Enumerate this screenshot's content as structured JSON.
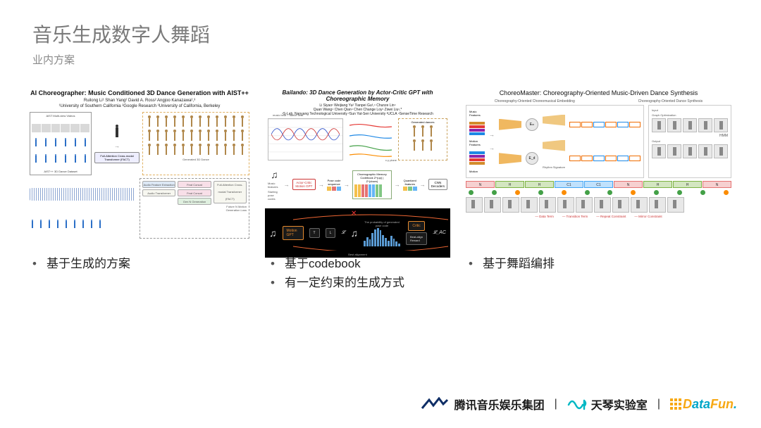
{
  "header": {
    "title": "音乐生成数字人舞蹈",
    "subtitle": "业内方案"
  },
  "columns": [
    {
      "paper_title": "AI Choreographer: Music Conditioned 3D Dance Generation with AIST++",
      "authors_line1": "Ruilong Li¹    Shan Yang²    David A. Ross²    Angjoo Kanazawa²,³",
      "authors_line2": "¹University of Southern California   ²Google Research   ³University of California, Berkeley",
      "labels": {
        "top_left_top": "AIST Multi-view Videos",
        "top_left_bot": "AIST++ 3D Dance Dataset",
        "mid_box": "Full-Attention Cross-modal Transformer (FACT)",
        "right_label": "Generated 3D Dance",
        "bot_right_out": "Future N Motion Generation Loss",
        "mod1": "Audio Transformer",
        "mod1b": "Audio Feature Extraction",
        "mod2a": "Feat Concat",
        "mod2b": "Feat Concat",
        "mod2c": "Gen N Generation",
        "mod3": "Full-Attention Cross-modal Transformer (FACT)"
      },
      "bullets": [
        "基于生成的方案"
      ]
    },
    {
      "paper_title": "Bailando: 3D Dance Generation by Actor-Critic GPT with Choreographic Memory",
      "authors_line1": "Li Siyao¹   Weijiang Yu²   Tianpei Gu³,⁴   Chunze Lin⁴",
      "authors_line2": "Quan Wang⁴   Chen Qian⁴   Chen Change Loy¹   Ziwei Liu¹,*",
      "authors_line3": "¹S-Lab, Nanyang Technological University   ²Sun Yat-Sen University   ³UCLA   ⁴SenseTime Research",
      "labels": {
        "wave_top": "music beat  ↓ dance beat",
        "flow1": "Music features",
        "flow2": "Starting pose codes",
        "gpt": "Actor-Critic Motion GPT",
        "pose_code": "Pose code sequence",
        "codebook_title": "Choreographic Memory Codebook  Z^(up) | Z^(down)",
        "quant": "Quantized features",
        "cnn": "CNN Decoders",
        "gen": "Generated dances",
        "xy": "x-y plane",
        "bb_motion": "Motion GPT",
        "bb_T": "T",
        "bb_L": "L",
        "bb_critic": "Critic",
        "beat_align": "Beat-align Reward",
        "lac": "𝓛_AC",
        "best": "Best alignment",
        "prob_caption": "The probability of generated pose code"
      },
      "bullets": [
        "基于codebook",
        "有一定约束的生成方式"
      ]
    },
    {
      "paper_title": "ChoreoMaster: Choreography-Oriented Music-Driven Dance Synthesis",
      "sub_left": "Choreography-Oriented Choreomusical Embedding",
      "sub_right": "Choreography-Oriented Dance Synthesis",
      "labels": {
        "music_feat": "Music Features",
        "motion_feat": "Motion Features",
        "Em": "Eₘ",
        "Ed": "E_d",
        "rhythm": "Rhythm Signature",
        "motion": "Motion",
        "hmm": "HMM",
        "input": "Input",
        "graph_opt": "Graph Optimization",
        "output": "Output",
        "legend1": "Data Term",
        "legend2": "Transition Term",
        "legend3": "Repeat Constraint",
        "legend4": "Mirror Constraint"
      },
      "seg_labels": [
        "N",
        "H",
        "H",
        "C1",
        "C1",
        "N",
        "H",
        "H",
        "N"
      ],
      "seg_colors": [
        "#e57373",
        "#7cb342",
        "#7cb342",
        "#42a5f5",
        "#42a5f5",
        "#e57373",
        "#7cb342",
        "#7cb342",
        "#e57373"
      ],
      "circle_colors": [
        "#43a047",
        "#43a047",
        "#fb8c00",
        "#43a047",
        "#fb8c00",
        "#43a047",
        "#43a047",
        "#fb8c00",
        "#43a047",
        "#43a047",
        "#43a047",
        "#fb8c00"
      ],
      "bullets": [
        "基于舞蹈编排"
      ]
    }
  ],
  "footer": {
    "tme": "腾讯音乐娱乐集团",
    "lyra": "天琴实验室",
    "datafun_parts": {
      "d": "D",
      "ata": "ata",
      "fun": "Fun",
      "dot": "."
    }
  },
  "colors": {
    "codebook_bars": [
      "#f4c04c",
      "#f4c04c",
      "#e57373",
      "#e57373",
      "#64b5f6",
      "#64b5f6",
      "#81c784",
      "#81c784"
    ],
    "hist_heights": [
      0.3,
      0.5,
      0.35,
      0.7,
      0.9,
      1.0,
      0.85,
      0.6,
      0.45,
      0.3,
      0.55,
      0.4,
      0.25,
      0.15
    ],
    "colorstack1": [
      "#d38b2a",
      "#e53935",
      "#8e24aa",
      "#1e88e5"
    ],
    "colorstack2": [
      "#1e88e5",
      "#8e24aa",
      "#e53935",
      "#d38b2a"
    ],
    "rhythm_colors": [
      "#ef6c00",
      "#ef6c00",
      "#1e88e5",
      "#ef6c00",
      "#1e88e5",
      "#ef6c00"
    ]
  }
}
